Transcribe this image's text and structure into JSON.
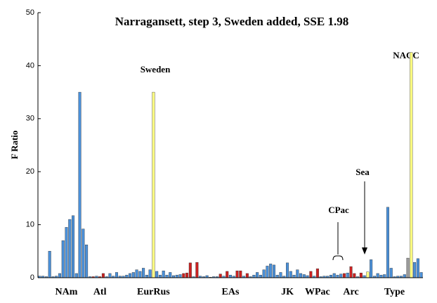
{
  "chart_data": {
    "type": "bar",
    "title": "Narragansett, step 3, Sweden added, SSE 1.98",
    "y_label": "F Ratio",
    "ylim": [
      0,
      50
    ],
    "yticks": [
      0,
      10,
      20,
      30,
      40,
      50
    ],
    "grid": false,
    "annotations": [
      "Sweden",
      "NACC",
      "Sea",
      "CPac"
    ],
    "categories": [
      null,
      null,
      null,
      null,
      null,
      null,
      null,
      null,
      "NAm",
      null,
      null,
      null,
      null,
      null,
      null,
      null,
      null,
      null,
      "Atl",
      null,
      null,
      null,
      null,
      null,
      null,
      null,
      null,
      null,
      null,
      null,
      null,
      null,
      null,
      null,
      "EurRus",
      null,
      null,
      null,
      null,
      null,
      null,
      null,
      null,
      null,
      null,
      null,
      null,
      null,
      null,
      null,
      null,
      null,
      null,
      null,
      null,
      null,
      null,
      "EAs",
      null,
      null,
      null,
      null,
      null,
      null,
      null,
      null,
      null,
      null,
      null,
      null,
      null,
      null,
      null,
      null,
      "JK",
      null,
      null,
      null,
      null,
      null,
      null,
      null,
      null,
      "WPac",
      null,
      null,
      null,
      null,
      null,
      null,
      null,
      null,
      null,
      "Arc",
      null,
      null,
      null,
      null,
      null,
      null,
      null,
      null,
      null,
      null,
      null,
      null,
      "Type",
      null,
      null,
      null,
      null,
      null,
      null,
      null,
      null
    ],
    "values": [
      0.3,
      0.3,
      0.2,
      5,
      0.2,
      0.3,
      0.8,
      7,
      9.5,
      11,
      11.7,
      0.8,
      35,
      9.2,
      6.2,
      0.2,
      0.2,
      0.3,
      0.2,
      0.8,
      0.2,
      0.8,
      0.3,
      1,
      0.3,
      0.3,
      0.5,
      0.8,
      1,
      1.5,
      1.2,
      1.8,
      0.5,
      1.5,
      35,
      1.2,
      0.5,
      1.3,
      0.5,
      1,
      0.4,
      0.5,
      0.6,
      0.8,
      0.9,
      2.8,
      0.2,
      2.9,
      0.3,
      0.2,
      0.4,
      0.1,
      0.2,
      0.2,
      0.7,
      0.3,
      1.2,
      0.5,
      0.3,
      1.3,
      1.3,
      0.3,
      0.8,
      0.2,
      0.5,
      1,
      0.5,
      1.5,
      2.2,
      2.6,
      2.4,
      0.5,
      1,
      0.3,
      2.8,
      1.2,
      0.5,
      1.5,
      0.8,
      0.6,
      0.4,
      1.2,
      0.3,
      1.7,
      0.2,
      0.3,
      0.3,
      0.5,
      0.8,
      0.5,
      0.7,
      0.8,
      0.9,
      2.1,
      0.8,
      0.2,
      0.9,
      0.4,
      1.1,
      3.4,
      0.3,
      0.8,
      0.5,
      0.6,
      13.3,
      1.8,
      0.2,
      0.3,
      0.3,
      0.6,
      3.7,
      42.5,
      2.9,
      3.6,
      1
    ],
    "colors": [
      "#4a90d9",
      "#4a90d9",
      "#4a90d9",
      "#4a90d9",
      "#4a90d9",
      "#4a90d9",
      "#4a90d9",
      "#4a90d9",
      "#4a90d9",
      "#4a90d9",
      "#4a90d9",
      "#4a90d9",
      "#4a90d9",
      "#4a90d9",
      "#4a90d9",
      "#4a90d9",
      "#cc2222",
      "#4a90d9",
      "#cc2222",
      "#cc2222",
      "#4a90d9",
      "#4a90d9",
      "#4a90d9",
      "#4a90d9",
      "#4a90d9",
      "#4a90d9",
      "#4a90d9",
      "#4a90d9",
      "#4a90d9",
      "#4a90d9",
      "#4a90d9",
      "#4a90d9",
      "#4a90d9",
      "#4a90d9",
      "#ffff80",
      "#4a90d9",
      "#4a90d9",
      "#4a90d9",
      "#4a90d9",
      "#4a90d9",
      "#4a90d9",
      "#4a90d9",
      "#4a90d9",
      "#cc2222",
      "#cc2222",
      "#cc2222",
      "#4a90d9",
      "#cc2222",
      "#4a90d9",
      "#4a90d9",
      "#4a90d9",
      "#4a90d9",
      "#4a90d9",
      "#4a90d9",
      "#cc2222",
      "#4a90d9",
      "#cc2222",
      "#4a90d9",
      "#4a90d9",
      "#cc2222",
      "#cc2222",
      "#4a90d9",
      "#cc2222",
      "#4a90d9",
      "#4a90d9",
      "#4a90d9",
      "#4a90d9",
      "#4a90d9",
      "#4a90d9",
      "#4a90d9",
      "#4a90d9",
      "#4a90d9",
      "#4a90d9",
      "#4a90d9",
      "#4a90d9",
      "#4a90d9",
      "#4a90d9",
      "#4a90d9",
      "#4a90d9",
      "#4a90d9",
      "#4a90d9",
      "#cc2222",
      "#4a90d9",
      "#cc2222",
      "#4a90d9",
      "#4a90d9",
      "#4a90d9",
      "#4a90d9",
      "#4a90d9",
      "#4a90d9",
      "#4a90d9",
      "#cc2222",
      "#4a90d9",
      "#cc2222",
      "#cc2222",
      "#4a90d9",
      "#cc2222",
      "#4a90d9",
      "#ffff80",
      "#4a90d9",
      "#4a90d9",
      "#4a90d9",
      "#4a90d9",
      "#4a90d9",
      "#4a90d9",
      "#4a90d9",
      "#4a90d9",
      "#4a90d9",
      "#4a90d9",
      "#4a90d9",
      "#999999",
      "#ffff80",
      "#4a90d9",
      "#4a90d9",
      "#4a90d9"
    ]
  }
}
